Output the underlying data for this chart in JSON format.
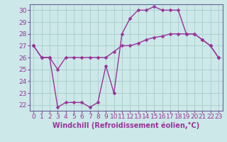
{
  "bg_color": "#cce8e8",
  "line_color": "#993399",
  "grid_color": "#aacccc",
  "xlim": [
    -0.5,
    23.5
  ],
  "ylim": [
    21.5,
    30.5
  ],
  "yticks": [
    22,
    23,
    24,
    25,
    26,
    27,
    28,
    29,
    30
  ],
  "xticks": [
    0,
    1,
    2,
    3,
    4,
    5,
    6,
    7,
    8,
    9,
    10,
    11,
    12,
    13,
    14,
    15,
    16,
    17,
    18,
    19,
    20,
    21,
    22,
    23
  ],
  "line1_x": [
    0,
    1,
    2,
    3,
    4,
    5,
    6,
    7,
    8,
    9,
    10,
    11,
    12,
    13,
    14,
    15,
    16,
    17,
    18,
    19,
    20,
    21,
    22,
    23
  ],
  "line1_y": [
    27,
    26,
    26,
    25,
    26,
    26,
    26,
    26,
    26,
    26,
    26.5,
    27,
    27,
    27.2,
    27.5,
    27.7,
    27.8,
    28,
    28,
    28,
    28,
    27.5,
    27,
    26
  ],
  "line2_x": [
    0,
    1,
    2,
    3,
    4,
    5,
    6,
    7,
    8,
    9,
    10,
    11,
    12,
    13,
    14,
    15,
    16,
    17,
    18,
    19,
    20,
    21,
    22,
    23
  ],
  "line2_y": [
    27,
    26,
    26,
    21.8,
    22.2,
    22.2,
    22.2,
    21.8,
    22.2,
    25.3,
    23,
    28,
    29.3,
    30,
    30,
    30.3,
    30,
    30,
    30,
    28,
    28,
    27.5,
    27,
    26
  ],
  "xlabel": "Windchill (Refroidissement éolien,°C)",
  "marker": "D",
  "markersize": 2.5,
  "linewidth": 1.0,
  "tick_fontsize": 6.5,
  "xlabel_fontsize": 7.0,
  "spine_color": "#666699"
}
